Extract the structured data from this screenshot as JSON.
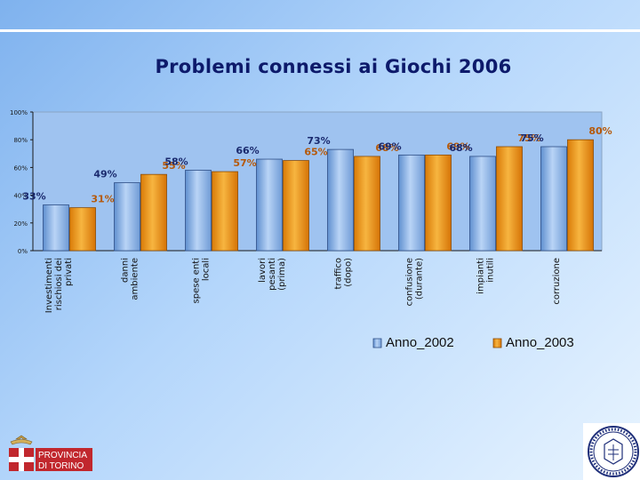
{
  "slide": {
    "title": "Problemi connessi ai Giochi 2006"
  },
  "logo": {
    "text_line1": "PROVINCIA",
    "text_line2": "DI TORINO"
  },
  "chart_data": {
    "type": "bar",
    "title": "Problemi connessi ai Giochi 2006",
    "categories": [
      "Investimenti|rischiosi dei|privati",
      "danni|ambiente",
      "spese enti|locali",
      "lavori|pesanti|(prima)",
      "traffico|(dopo)",
      "confusione|(durante)",
      "impianti|inutili",
      "corruzione"
    ],
    "series": [
      {
        "name": "Anno_2002",
        "values": [
          33,
          49,
          58,
          66,
          73,
          69,
          68,
          75
        ],
        "labels": [
          "33%",
          "49%",
          "58%",
          "66%",
          "73%",
          "69%",
          "68%",
          "75%"
        ],
        "color": "#8db6ea",
        "label_color": "#1a2a6e"
      },
      {
        "name": "Anno_2003",
        "values": [
          31,
          55,
          57,
          65,
          68,
          69,
          75,
          80
        ],
        "labels": [
          "31%",
          "55%",
          "57%",
          "65%",
          "68%",
          "69%",
          "75%",
          "80%"
        ],
        "color": "#ee9a11",
        "label_color": "#b5590a"
      }
    ],
    "ylim": [
      0,
      100
    ],
    "yticks": [
      "0%",
      "20%",
      "40%",
      "60%",
      "80%",
      "100%"
    ],
    "ytick_values": [
      0,
      20,
      40,
      60,
      80,
      100
    ],
    "gridlines": false,
    "legend_position": "bottom-right"
  }
}
